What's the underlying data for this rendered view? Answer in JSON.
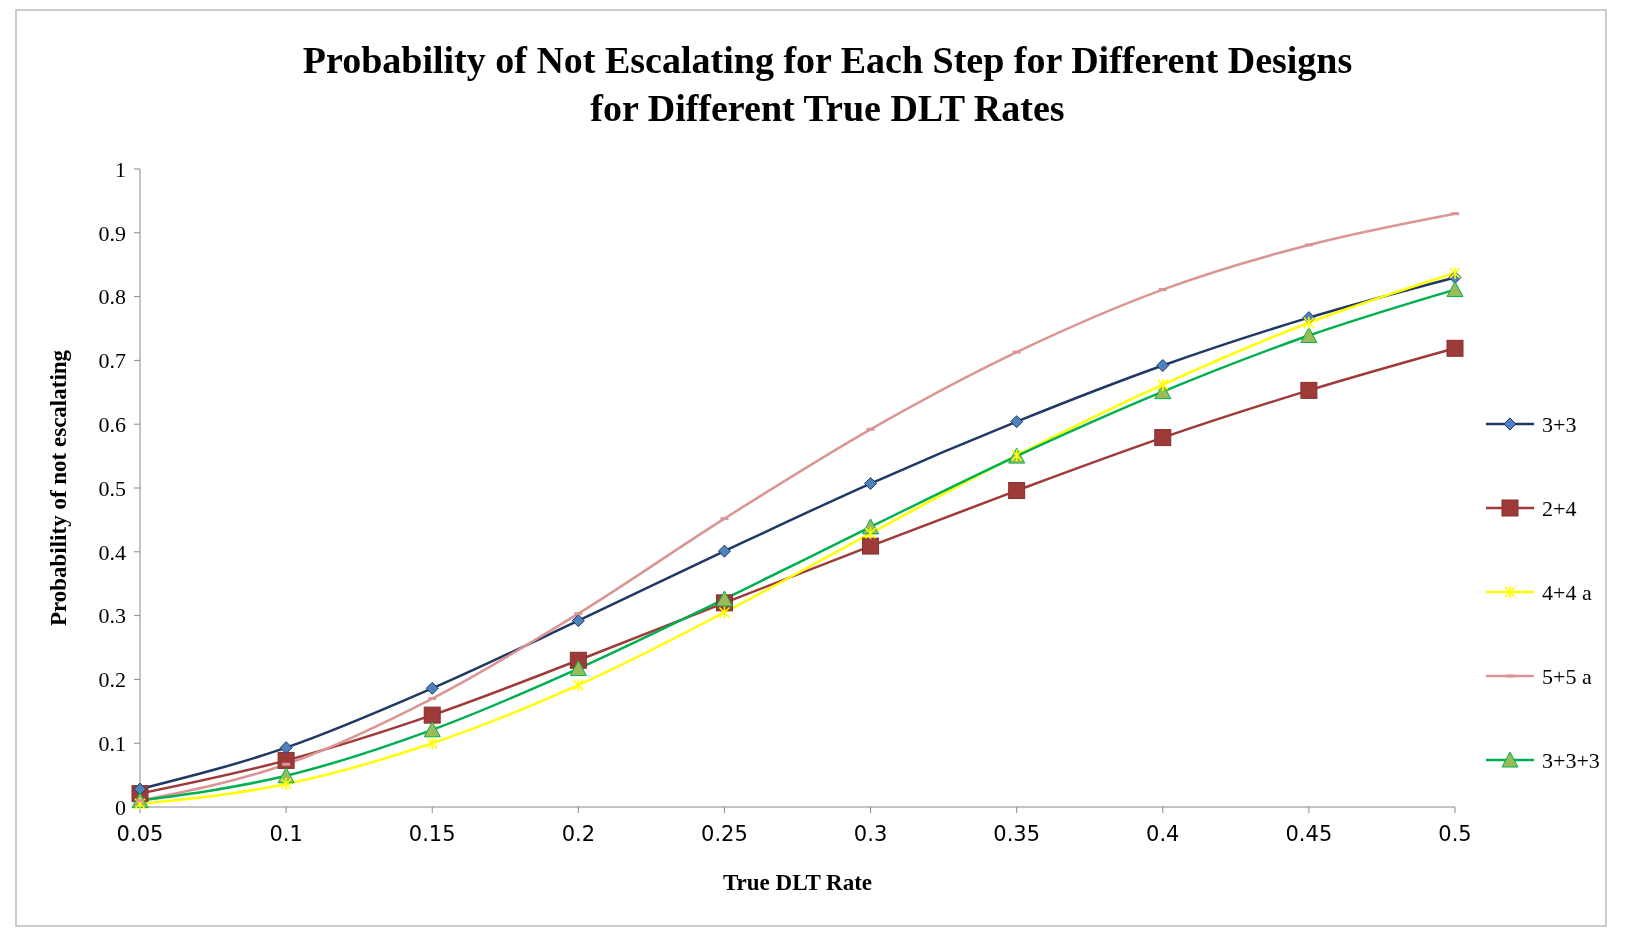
{
  "chart_data": {
    "type": "line",
    "title": "Probability of Not Escalating for Each Step for Different Designs\nfor Different True DLT Rates",
    "xlabel": "True DLT Rate",
    "ylabel": "Probability of not escalating",
    "x": [
      0.05,
      0.1,
      0.15,
      0.2,
      0.25,
      0.3,
      0.35,
      0.4,
      0.45,
      0.5
    ],
    "xlim": [
      0.05,
      0.5
    ],
    "xticks": [
      0.05,
      0.1,
      0.15,
      0.2,
      0.25,
      0.3,
      0.35,
      0.4,
      0.45,
      0.5
    ],
    "ylim": [
      0,
      1
    ],
    "yticks": [
      0,
      0.1,
      0.2,
      0.3,
      0.4,
      0.5,
      0.6,
      0.7,
      0.8,
      0.9,
      1
    ],
    "grid": false,
    "legend": "right",
    "series": [
      {
        "name": "3+3",
        "color": "#1f3864",
        "marker": "diamond",
        "values": [
          0.028,
          0.093,
          0.186,
          0.292,
          0.401,
          0.507,
          0.604,
          0.692,
          0.767,
          0.83
        ]
      },
      {
        "name": "2+4",
        "color": "#9e3a38",
        "marker": "square",
        "values": [
          0.021,
          0.073,
          0.144,
          0.23,
          0.32,
          0.409,
          0.496,
          0.579,
          0.653,
          0.719
        ]
      },
      {
        "name": "4+4 a",
        "color": "#ffff00",
        "marker": "cross",
        "values": [
          0.005,
          0.036,
          0.1,
          0.191,
          0.305,
          0.429,
          0.551,
          0.662,
          0.759,
          0.837
        ]
      },
      {
        "name": "5+5 a",
        "color": "#d99694",
        "marker": "square",
        "values": [
          0.01,
          0.067,
          0.17,
          0.303,
          0.452,
          0.592,
          0.713,
          0.811,
          0.881,
          0.93
        ]
      },
      {
        "name": "3+3+3",
        "color": "#00b050",
        "marker": "triangle",
        "values": [
          0.01,
          0.049,
          0.121,
          0.217,
          0.326,
          0.439,
          0.55,
          0.651,
          0.739,
          0.811
        ]
      }
    ]
  }
}
